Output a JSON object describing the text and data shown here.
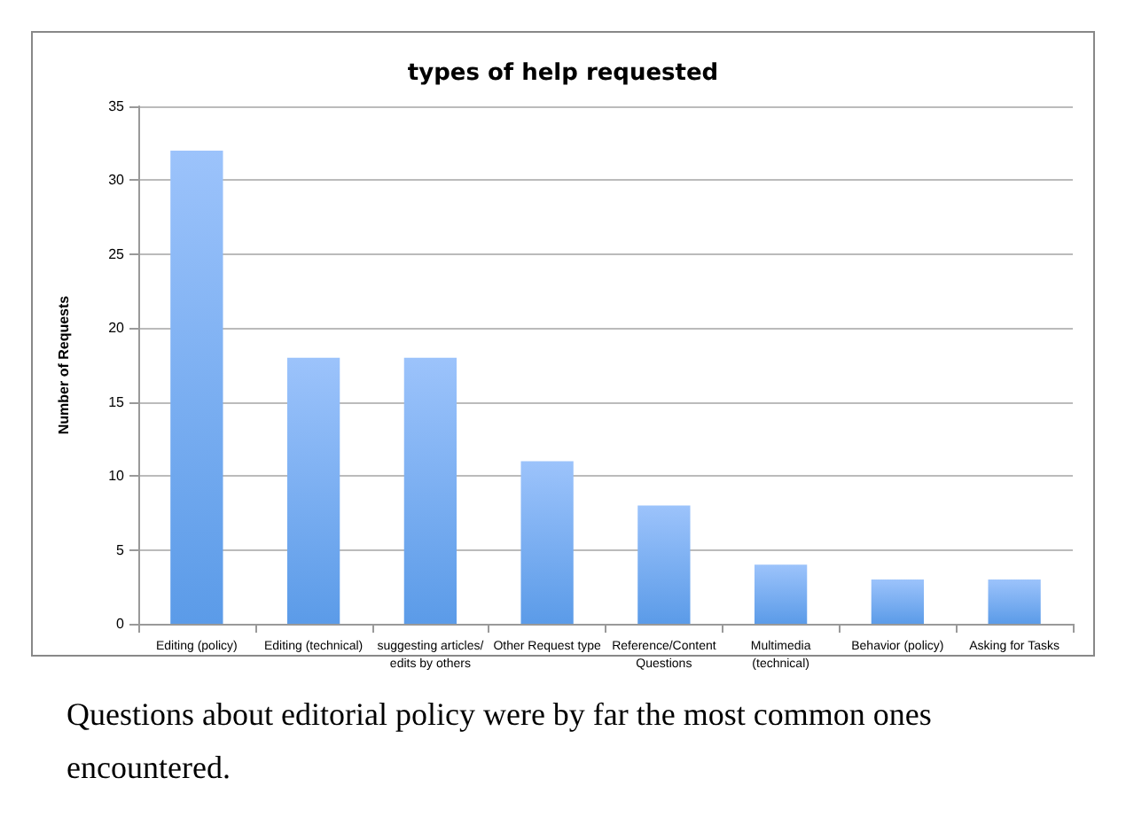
{
  "chart_data": {
    "type": "bar",
    "title": "types of help requested",
    "ylabel": "Number of Requests",
    "categories": [
      "Editing (policy)",
      "Editing (technical)",
      "suggesting articles/\nedits by others",
      "Other Request type",
      "Reference/Content\nQuestions",
      "Multimedia\n(technical)",
      "Behavior (policy)",
      "Asking for Tasks"
    ],
    "values": [
      32,
      18,
      18,
      11,
      8,
      4,
      3,
      3
    ],
    "color": "#5b9be8",
    "ylim": [
      0,
      35
    ],
    "yticks": [
      0,
      5,
      10,
      15,
      20,
      25,
      30,
      35
    ],
    "grid": "y",
    "annotations": [
      "Questions about editorial policy were by far the most common ones encountered."
    ]
  }
}
